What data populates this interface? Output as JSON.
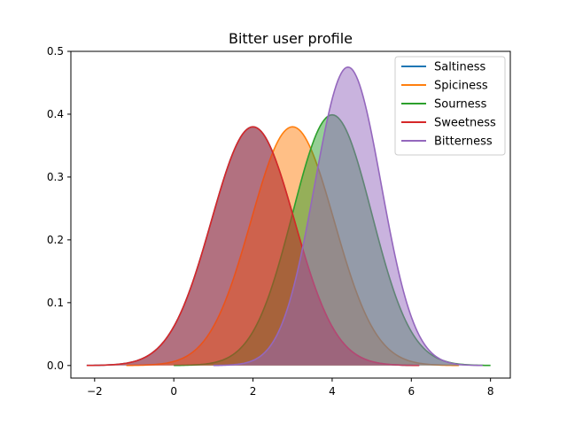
{
  "chart_data": {
    "type": "area",
    "title": "Bitter user profile",
    "xlabel": "",
    "ylabel": "",
    "xlim": [
      -2.6,
      8.5
    ],
    "ylim": [
      -0.02,
      0.5
    ],
    "xticks": [
      -2,
      0,
      2,
      4,
      6,
      8
    ],
    "xtick_labels": [
      "−2",
      "0",
      "2",
      "4",
      "6",
      "8"
    ],
    "yticks": [
      0.0,
      0.1,
      0.2,
      0.3,
      0.4,
      0.5
    ],
    "ytick_labels": [
      "0.0",
      "0.1",
      "0.2",
      "0.3",
      "0.4",
      "0.5"
    ],
    "grid": false,
    "legend_position": "top-right",
    "distribution": "normal",
    "series": [
      {
        "name": "Saltiness",
        "color": "#1f77b4",
        "mean": 2.0,
        "sd": 1.05,
        "x_range": [
          -2.2,
          6.2
        ]
      },
      {
        "name": "Spiciness",
        "color": "#ff7f0e",
        "mean": 3.0,
        "sd": 1.05,
        "x_range": [
          -1.2,
          7.2
        ]
      },
      {
        "name": "Sourness",
        "color": "#2ca02c",
        "mean": 4.0,
        "sd": 1.0,
        "x_range": [
          0.0,
          8.0
        ]
      },
      {
        "name": "Sweetness",
        "color": "#d62728",
        "mean": 2.0,
        "sd": 1.05,
        "x_range": [
          -2.2,
          6.2
        ]
      },
      {
        "name": "Bitterness",
        "color": "#9467bd",
        "mean": 4.4,
        "sd": 0.84,
        "x_range": [
          1.0,
          7.8
        ]
      }
    ]
  }
}
